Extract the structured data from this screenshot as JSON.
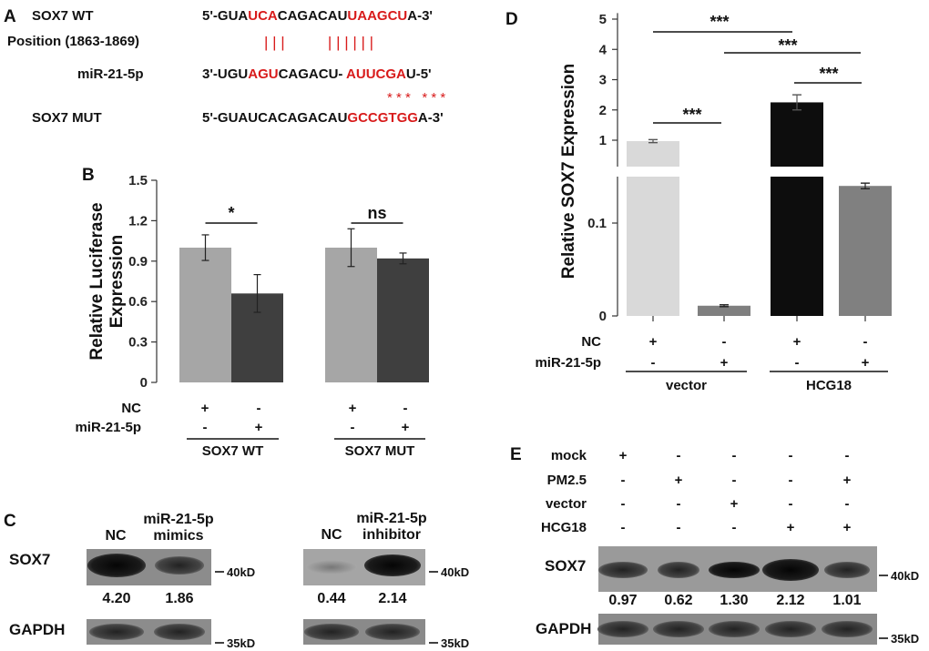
{
  "panel_letters": {
    "A": "A",
    "B": "B",
    "C": "C",
    "D": "D",
    "E": "E"
  },
  "panel_a": {
    "rows": [
      {
        "label": "SOX7 WT",
        "segments": [
          [
            "5'-GUA",
            false
          ],
          [
            "UCA",
            true
          ],
          [
            "CAGACAU",
            false
          ],
          [
            "UAAGCU",
            true
          ],
          [
            "A-3'",
            false
          ]
        ]
      },
      {
        "label": "Position (1863-1869)",
        "marks": "| | |          | | | | | |"
      },
      {
        "label": "miR-21-5p",
        "segments": [
          [
            "3'-UGU",
            false
          ],
          [
            "AGU",
            true
          ],
          [
            "CAGACU- ",
            false
          ],
          [
            "AUUCGA",
            true
          ],
          [
            "U-5'",
            false
          ]
        ]
      },
      {
        "label": "",
        "marks": "* * *   * * *"
      },
      {
        "label": "SOX7 MUT",
        "segments": [
          [
            "5'-GUAUCACAGACAU",
            false
          ],
          [
            "GCCGTGG",
            true
          ],
          [
            "A-3'",
            false
          ]
        ]
      }
    ],
    "highlight_color": "#d81b1b"
  },
  "chart_data": [
    {
      "panel": "B",
      "type": "bar",
      "title": "",
      "xlabel": "",
      "ylabel": "Relative Luciferase Expression",
      "ylabel_lines": [
        "Relative Luciferase",
        "Expression"
      ],
      "ylim": [
        0,
        1.5
      ],
      "yticks": [
        "0",
        "0.3",
        "0.6",
        "0.9",
        "1.2",
        "1.5"
      ],
      "groups": [
        "SOX7 WT",
        "SOX7 MUT"
      ],
      "series": [
        {
          "name": "NC",
          "color": "#a6a6a6",
          "values": [
            1.0,
            1.0
          ],
          "errors": [
            0.095,
            0.14
          ]
        },
        {
          "name": "miR-21-5p",
          "color": "#3f3f3f",
          "values": [
            0.66,
            0.92
          ],
          "errors": [
            0.14,
            0.04
          ]
        }
      ],
      "significance": [
        "*",
        "ns"
      ],
      "condition_rows": [
        {
          "label": "NC",
          "marks": [
            "+",
            "-",
            "+",
            "-"
          ]
        },
        {
          "label": "miR-21-5p",
          "marks": [
            "-",
            "+",
            "-",
            "+"
          ]
        }
      ]
    },
    {
      "panel": "D",
      "type": "bar",
      "title": "",
      "xlabel": "",
      "ylabel": "Relative SOX7 Expression",
      "yaxis_break": true,
      "yticks_lower": [
        "0",
        "0.1"
      ],
      "yticks_upper": [
        "1",
        "2",
        "3",
        "4",
        "5"
      ],
      "categories": [
        "vector+NC",
        "vector+miR-21-5p",
        "HCG18+NC",
        "HCG18+miR-21-5p"
      ],
      "values": [
        0.97,
        0.011,
        2.25,
        0.14
      ],
      "errors": [
        0.05,
        0.001,
        0.25,
        0.003
      ],
      "colors": [
        "#d9d9d9",
        "#7f7f7f",
        "#0d0d0d",
        "#808080"
      ],
      "significance": [
        {
          "from": 0,
          "to": 1,
          "label": "***"
        },
        {
          "from": 0,
          "to": 2,
          "label": "***"
        },
        {
          "from": 1,
          "to": 3,
          "label": "***"
        },
        {
          "from": 2,
          "to": 3,
          "label": "***"
        }
      ],
      "condition_rows": [
        {
          "label": "NC",
          "marks": [
            "+",
            "-",
            "+",
            "-"
          ]
        },
        {
          "label": "miR-21-5p",
          "marks": [
            "-",
            "+",
            "-",
            "+"
          ]
        }
      ],
      "group_labels": [
        "vector",
        "HCG18"
      ]
    }
  ],
  "panel_c": {
    "left": {
      "lanes": [
        "NC",
        "miR-21-5p mimics"
      ],
      "lane_lines": [
        [
          "NC"
        ],
        [
          "miR-21-5p",
          "mimics"
        ]
      ],
      "values": [
        "4.20",
        "1.86"
      ]
    },
    "right": {
      "lanes": [
        "NC",
        "miR-21-5p inhibitor"
      ],
      "lane_lines": [
        [
          "NC"
        ],
        [
          "miR-21-5p",
          "inhibitor"
        ]
      ],
      "values": [
        "0.44",
        "2.14"
      ]
    },
    "row_labels": [
      "SOX7",
      "GAPDH"
    ],
    "markers": [
      "40kD",
      "35kD"
    ]
  },
  "panel_e": {
    "conditions": [
      {
        "label": "mock",
        "marks": [
          "+",
          "-",
          "-",
          "-",
          "-"
        ]
      },
      {
        "label": "PM2.5",
        "marks": [
          "-",
          "+",
          "-",
          "-",
          "+"
        ]
      },
      {
        "label": "vector",
        "marks": [
          "-",
          "-",
          "+",
          "-",
          "-"
        ]
      },
      {
        "label": "HCG18",
        "marks": [
          "-",
          "-",
          "-",
          "+",
          "+"
        ]
      }
    ],
    "values": [
      "0.97",
      "0.62",
      "1.30",
      "2.12",
      "1.01"
    ],
    "row_labels": [
      "SOX7",
      "GAPDH"
    ],
    "markers": [
      "40kD",
      "35kD"
    ]
  }
}
